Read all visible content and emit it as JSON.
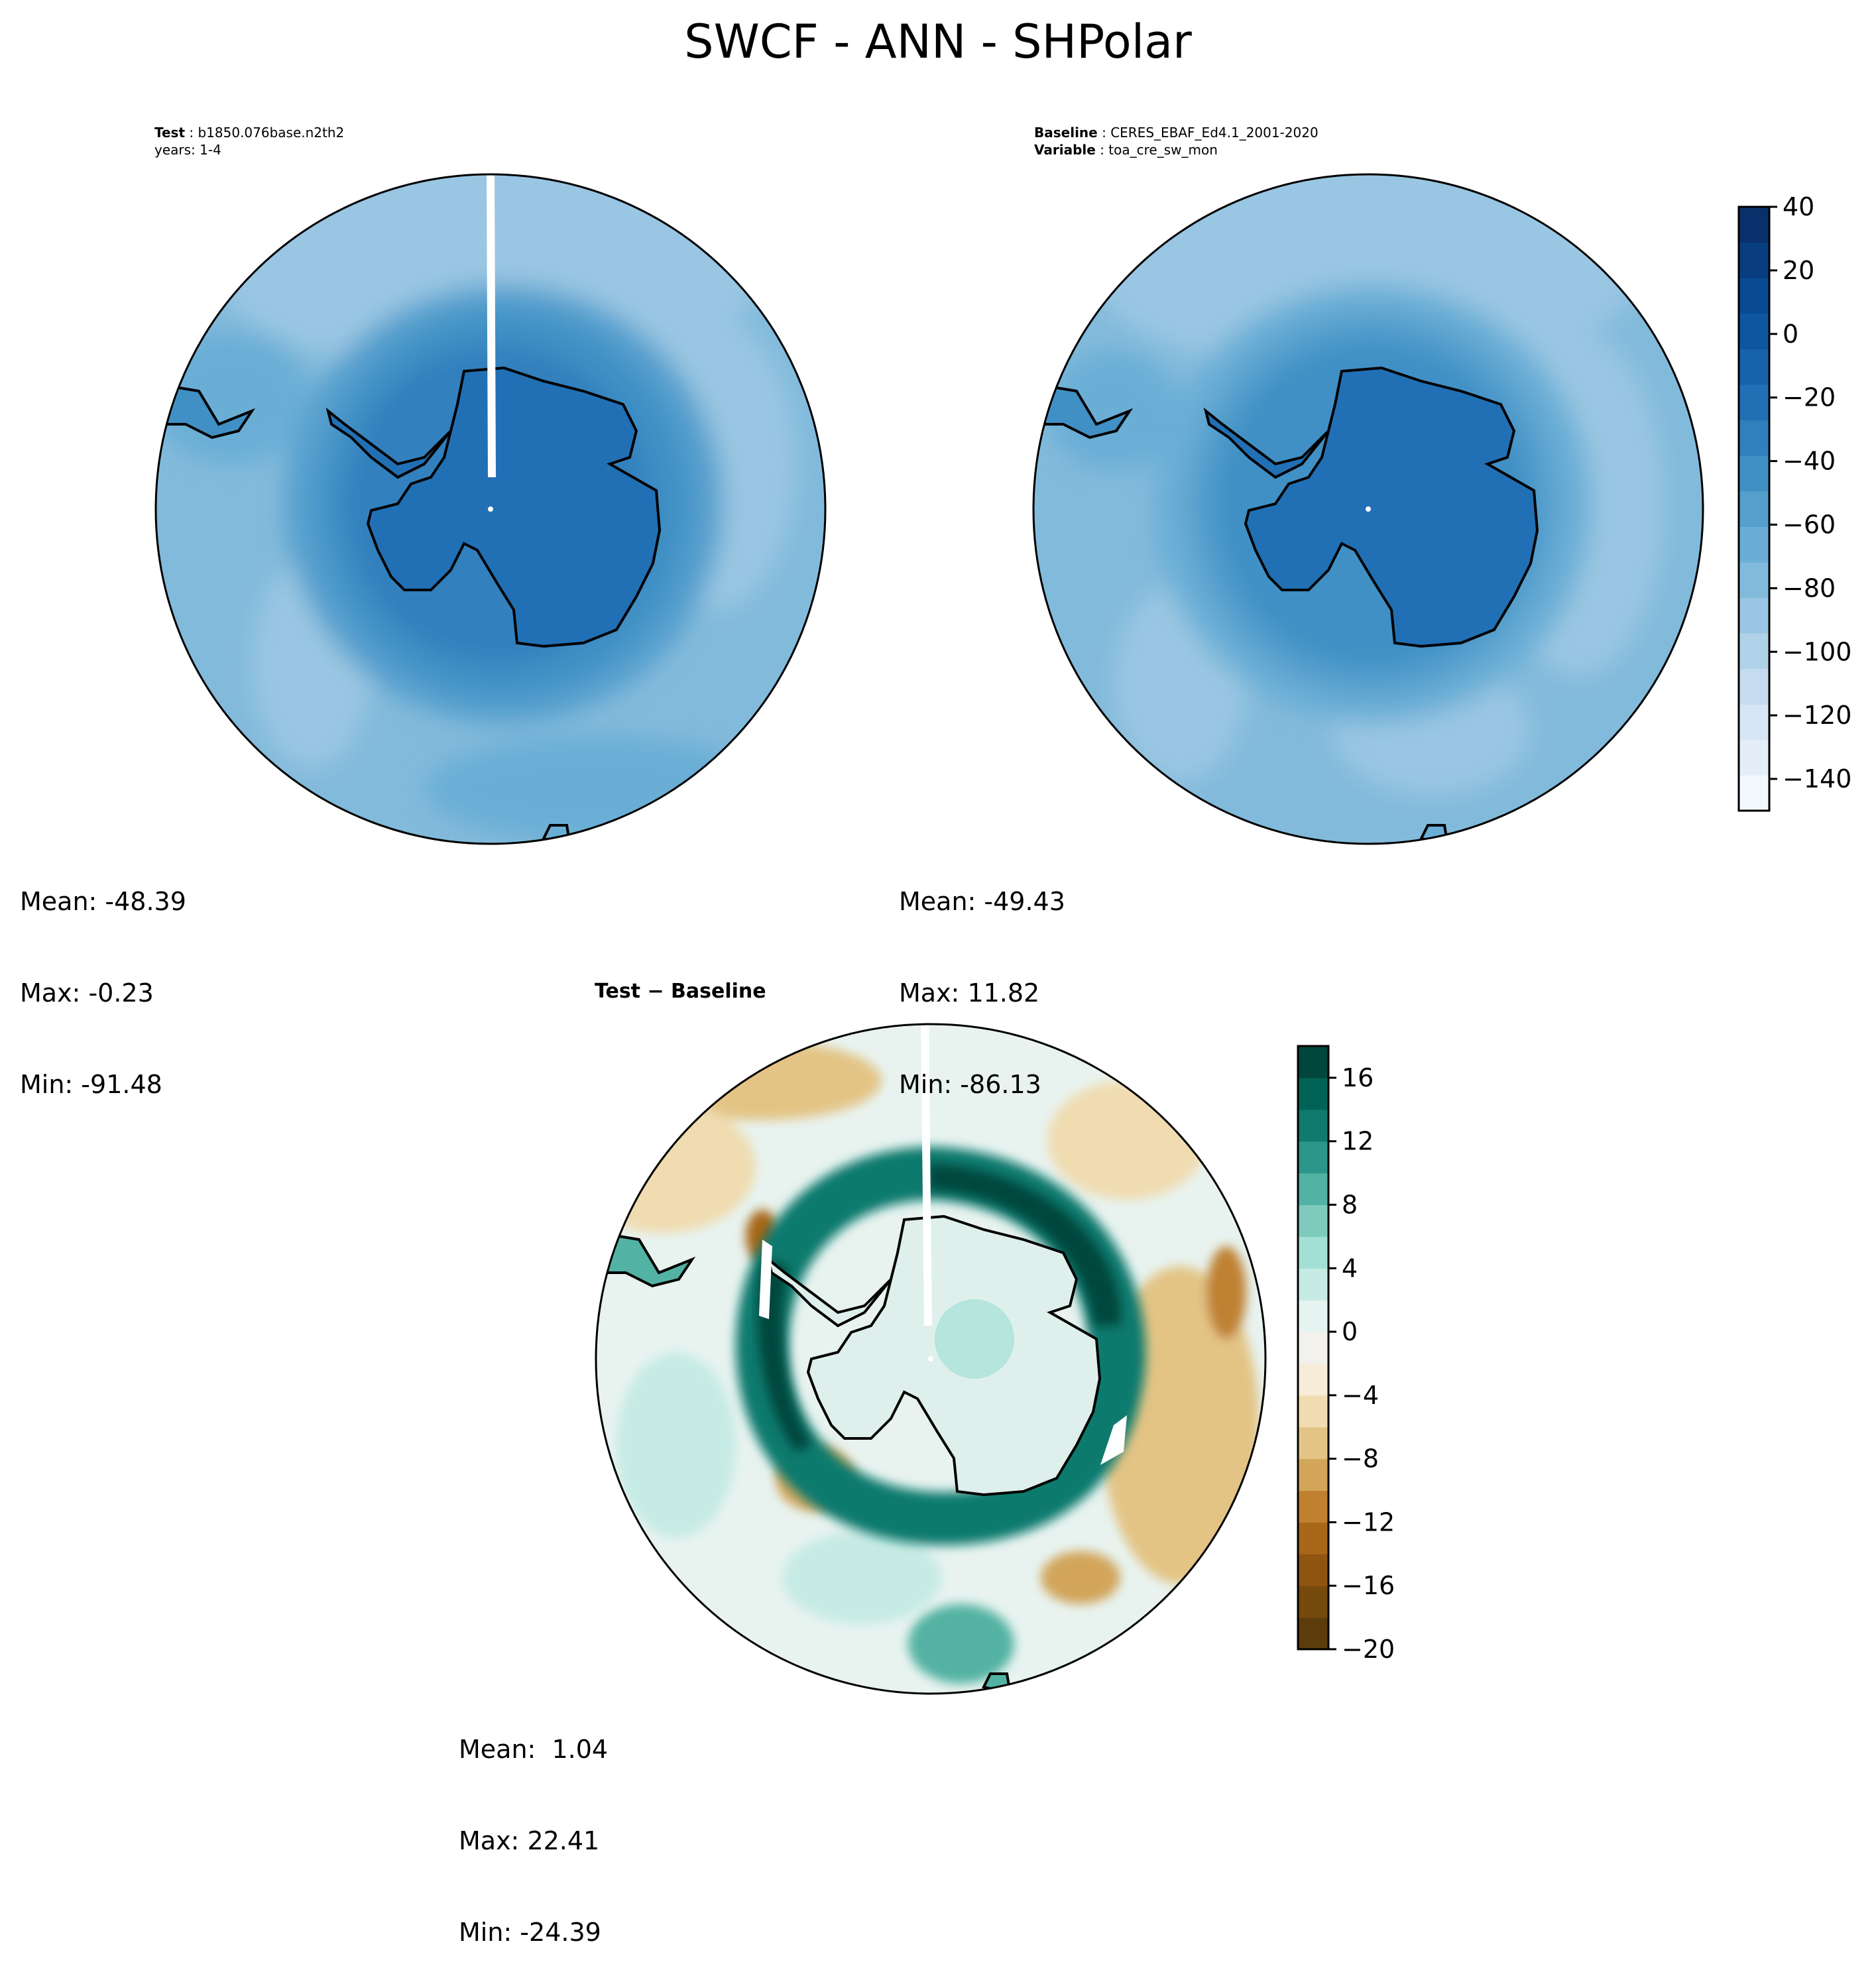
{
  "title": "SWCF - ANN - SHPolar",
  "test_panel": {
    "label_bold": "Test",
    "label_value": "b1850.076base.n2th2",
    "years": "years: 1-4",
    "stats": {
      "mean": "Mean: -48.39",
      "max": "Max: -0.23",
      "min": "Min: -91.48"
    }
  },
  "baseline_panel": {
    "label_bold": "Baseline",
    "label_value": "CERES_EBAF_Ed4.1_2001-2020",
    "variable_bold": "Variable",
    "variable_value": "toa_cre_sw_mon",
    "stats": {
      "mean": "Mean: -49.43",
      "max": "Max: 11.82",
      "min": "Min: -86.13"
    }
  },
  "diff_panel": {
    "title": "Test − Baseline",
    "stats": {
      "mean": "Mean:  1.04",
      "max": "Max: 22.41",
      "min": "Min: -24.39"
    }
  },
  "chart_data": [
    {
      "type": "heatmap",
      "name": "test",
      "projection": "south-polar-stereographic",
      "stats": {
        "mean": -48.39,
        "max": -0.23,
        "min": -91.48
      },
      "colorbar_ref": "main_colorbar"
    },
    {
      "type": "heatmap",
      "name": "baseline",
      "projection": "south-polar-stereographic",
      "stats": {
        "mean": -49.43,
        "max": 11.82,
        "min": -86.13
      },
      "colorbar_ref": "main_colorbar"
    },
    {
      "type": "heatmap",
      "name": "difference",
      "projection": "south-polar-stereographic",
      "stats": {
        "mean": 1.04,
        "max": 22.41,
        "min": -24.39
      },
      "colorbar_ref": "diff_colorbar"
    }
  ],
  "main_colorbar": {
    "range": [
      -150,
      40
    ],
    "ticks": [
      40,
      20,
      0,
      -20,
      -40,
      -60,
      -80,
      -100,
      -120,
      -140
    ],
    "tick_labels": [
      "40",
      "20",
      "0",
      "−20",
      "−40",
      "−60",
      "−80",
      "−100",
      "−120",
      "−140"
    ],
    "colors": [
      "#f2f8fd",
      "#e3eef8",
      "#d6e6f4",
      "#c5dbef",
      "#b0d2e8",
      "#99c6e2",
      "#82badb",
      "#6aaed6",
      "#559fcd",
      "#4190c5",
      "#3080bd",
      "#2170b5",
      "#1862ab",
      "#0e56a0",
      "#084b93",
      "#083d7f",
      "#08306b"
    ]
  },
  "diff_colorbar": {
    "range": [
      -20,
      18
    ],
    "ticks": [
      16,
      12,
      8,
      4,
      0,
      -4,
      -8,
      -12,
      -16,
      -20
    ],
    "tick_labels": [
      "16",
      "12",
      "8",
      "4",
      "0",
      "−4",
      "−8",
      "−12",
      "−16",
      "−20"
    ],
    "colors": [
      "#5c3c0a",
      "#764a0c",
      "#8f5510",
      "#a86618",
      "#bf8130",
      "#d2a55a",
      "#e3c485",
      "#f0dcb0",
      "#f7ecd7",
      "#f2f1ec",
      "#e5f3f1",
      "#c6ebe4",
      "#a3dfd5",
      "#7ecbbd",
      "#52b2a3",
      "#2c968a",
      "#107a6e",
      "#016355",
      "#00463c"
    ]
  }
}
